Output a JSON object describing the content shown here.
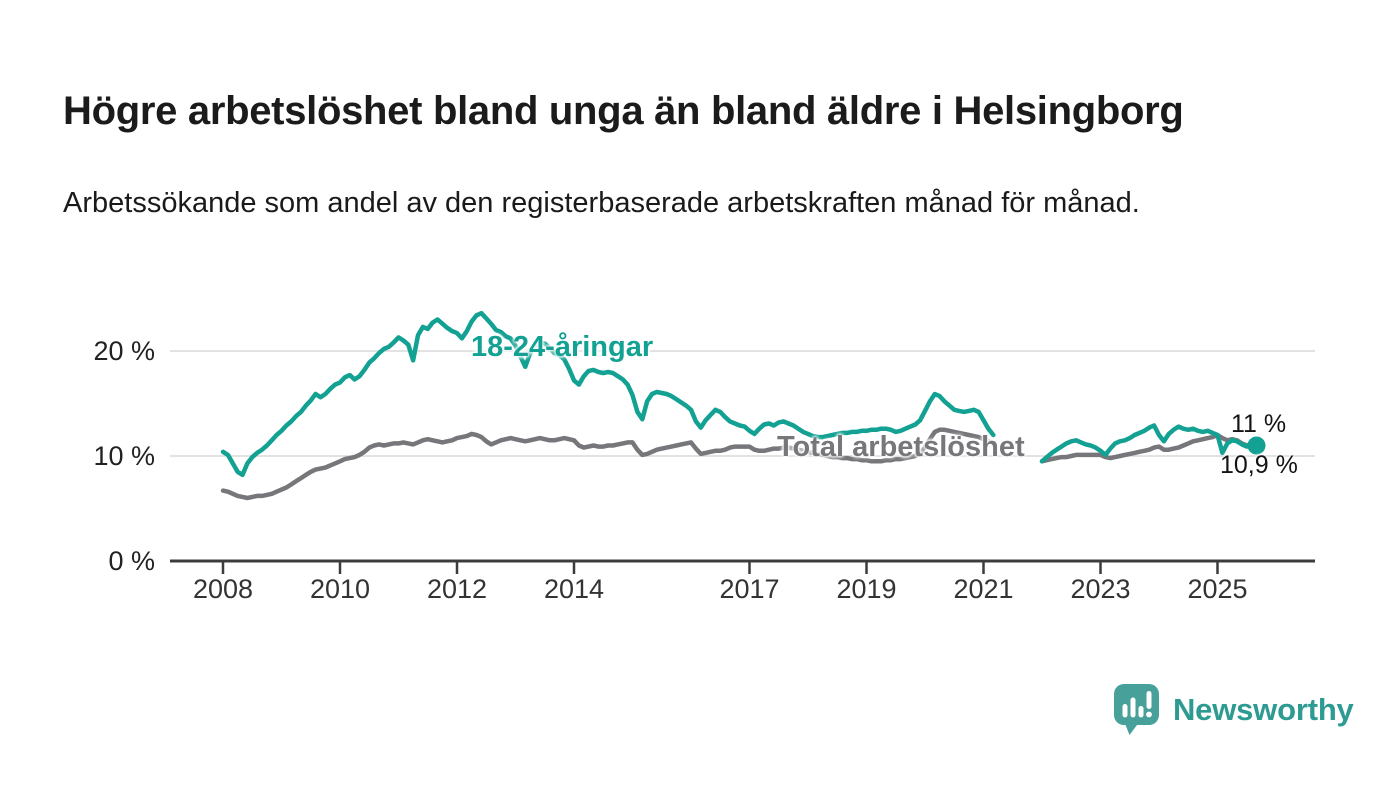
{
  "title": "Högre arbetslöshet bland unga än bland äldre i Helsingborg",
  "subtitle": "Arbetssökande som andel av den registerbaserade arbetskraften månad för månad.",
  "branding": {
    "name": "Newsworthy",
    "icon": "newsworthy-speech-bubble-bar-chart-icon"
  },
  "colors": {
    "accent_teal": "#12A192",
    "line_gray": "#77777B",
    "axis": "#3C3C3C",
    "grid": "#D8D8D8",
    "tick_text": "#333333",
    "logo_icon": "#47A09A",
    "logo_text": "#2E9B92"
  },
  "chart_data": {
    "type": "line",
    "title": "Högre arbetslöshet bland unga än bland äldre i Helsingborg",
    "xlabel": "",
    "ylabel": "",
    "x_start": "2008-01",
    "x_step_months": 1,
    "x_end": "2025-09",
    "ylim": [
      0,
      25
    ],
    "grid": "horizontal",
    "legend_position": "inline-annotations",
    "yticks": [
      {
        "label": "0 %",
        "value": 0
      },
      {
        "label": "10 %",
        "value": 10
      },
      {
        "label": "20 %",
        "value": 20
      }
    ],
    "xticks": [
      2008,
      2010,
      2012,
      2014,
      2017,
      2019,
      2021,
      2023,
      2025
    ],
    "series": [
      {
        "id": "youth",
        "name": "18-24-åringar",
        "annotation": "18-24-åringar",
        "end_label": "11 %",
        "latest_value": 11.0,
        "color": "#12A192",
        "values": [
          10.4,
          10.1,
          9.3,
          8.5,
          8.2,
          9.3,
          9.9,
          10.3,
          10.6,
          11.0,
          11.5,
          12.0,
          12.4,
          12.9,
          13.3,
          13.8,
          14.2,
          14.8,
          15.3,
          15.9,
          15.6,
          15.9,
          16.4,
          16.8,
          17.0,
          17.5,
          17.7,
          17.3,
          17.6,
          18.2,
          18.9,
          19.3,
          19.8,
          20.2,
          20.4,
          20.8,
          21.3,
          21.0,
          20.6,
          19.1,
          21.5,
          22.3,
          22.1,
          22.7,
          23.0,
          22.6,
          22.2,
          21.9,
          21.7,
          21.2,
          21.9,
          22.8,
          23.4,
          23.6,
          23.1,
          22.6,
          22.0,
          21.8,
          21.4,
          21.2,
          20.5,
          19.5,
          18.5,
          19.8,
          20.4,
          20.8,
          20.7,
          20.3,
          19.8,
          19.6,
          19.2,
          18.3,
          17.2,
          16.8,
          17.6,
          18.1,
          18.2,
          18.0,
          17.9,
          18.0,
          17.9,
          17.6,
          17.3,
          16.8,
          15.8,
          14.2,
          13.5,
          15.2,
          15.9,
          16.1,
          16.0,
          15.9,
          15.7,
          15.4,
          15.1,
          14.8,
          14.4,
          13.3,
          12.7,
          13.4,
          13.9,
          14.4,
          14.2,
          13.7,
          13.3,
          13.1,
          12.9,
          12.8,
          12.4,
          12.1,
          12.6,
          13.0,
          13.1,
          12.9,
          13.2,
          13.3,
          13.1,
          12.9,
          12.6,
          12.3,
          12.1,
          11.9,
          11.8,
          11.8,
          11.9,
          12.0,
          12.1,
          12.2,
          12.2,
          12.3,
          12.3,
          12.4,
          12.4,
          12.5,
          12.5,
          12.6,
          12.6,
          12.5,
          12.3,
          12.4,
          12.6,
          12.8,
          13.0,
          13.4,
          14.3,
          15.2,
          15.9,
          15.7,
          15.2,
          14.8,
          14.4,
          14.3,
          14.2,
          14.3,
          14.4,
          14.2,
          13.4,
          12.6,
          12.0,
          null,
          null,
          null,
          null,
          null,
          null,
          null,
          null,
          null,
          9.5,
          9.9,
          10.3,
          10.6,
          10.9,
          11.2,
          11.4,
          11.5,
          11.3,
          11.1,
          11.0,
          10.8,
          10.5,
          10.1,
          10.7,
          11.2,
          11.4,
          11.5,
          11.7,
          12.0,
          12.2,
          12.4,
          12.7,
          12.9,
          12.0,
          11.4,
          12.1,
          12.5,
          12.8,
          12.6,
          12.5,
          12.6,
          12.4,
          12.3,
          12.4,
          12.2,
          12.0,
          10.3,
          11.2,
          11.5,
          11.4,
          11.1,
          10.9,
          11.3,
          11.0
        ]
      },
      {
        "id": "total",
        "name": "Total arbetslöshet",
        "annotation": "Total arbetslöshet",
        "end_label": "10,9 %",
        "latest_value": 10.9,
        "color": "#77777B",
        "values": [
          6.7,
          6.6,
          6.4,
          6.2,
          6.1,
          6.0,
          6.1,
          6.2,
          6.2,
          6.3,
          6.4,
          6.6,
          6.8,
          7.0,
          7.3,
          7.6,
          7.9,
          8.2,
          8.5,
          8.7,
          8.8,
          8.9,
          9.1,
          9.3,
          9.5,
          9.7,
          9.8,
          9.9,
          10.1,
          10.4,
          10.8,
          11.0,
          11.1,
          11.0,
          11.1,
          11.2,
          11.2,
          11.3,
          11.2,
          11.1,
          11.3,
          11.5,
          11.6,
          11.5,
          11.4,
          11.3,
          11.4,
          11.5,
          11.7,
          11.8,
          11.9,
          12.1,
          12.0,
          11.8,
          11.4,
          11.1,
          11.3,
          11.5,
          11.6,
          11.7,
          11.6,
          11.5,
          11.4,
          11.5,
          11.6,
          11.7,
          11.6,
          11.5,
          11.5,
          11.6,
          11.7,
          11.6,
          11.5,
          11.0,
          10.8,
          10.9,
          11.0,
          10.9,
          10.9,
          11.0,
          11.0,
          11.1,
          11.2,
          11.3,
          11.3,
          10.6,
          10.1,
          10.2,
          10.4,
          10.6,
          10.7,
          10.8,
          10.9,
          11.0,
          11.1,
          11.2,
          11.3,
          10.7,
          10.2,
          10.3,
          10.4,
          10.5,
          10.5,
          10.6,
          10.8,
          10.9,
          10.9,
          10.9,
          10.9,
          10.6,
          10.5,
          10.5,
          10.6,
          10.7,
          10.7,
          10.8,
          10.8,
          10.7,
          10.6,
          10.5,
          10.4,
          10.3,
          10.2,
          10.1,
          10.0,
          9.9,
          9.9,
          9.8,
          9.8,
          9.7,
          9.7,
          9.6,
          9.6,
          9.5,
          9.5,
          9.5,
          9.6,
          9.6,
          9.7,
          9.7,
          9.8,
          9.9,
          10.0,
          10.3,
          10.8,
          11.6,
          12.3,
          12.5,
          12.5,
          12.4,
          12.3,
          12.2,
          12.1,
          12.0,
          11.9,
          11.8,
          11.6,
          11.4,
          11.2,
          null,
          null,
          null,
          null,
          null,
          null,
          null,
          null,
          null,
          9.5,
          9.6,
          9.7,
          9.8,
          9.9,
          9.9,
          10.0,
          10.1,
          10.1,
          10.1,
          10.1,
          10.1,
          10.1,
          9.9,
          9.8,
          9.9,
          10.0,
          10.1,
          10.2,
          10.3,
          10.4,
          10.5,
          10.6,
          10.8,
          10.9,
          10.6,
          10.6,
          10.7,
          10.8,
          11.0,
          11.2,
          11.4,
          11.5,
          11.6,
          11.7,
          11.8,
          12.0,
          11.7,
          11.5,
          11.6,
          11.5,
          11.2,
          11.0,
          11.0,
          10.9
        ]
      }
    ]
  }
}
